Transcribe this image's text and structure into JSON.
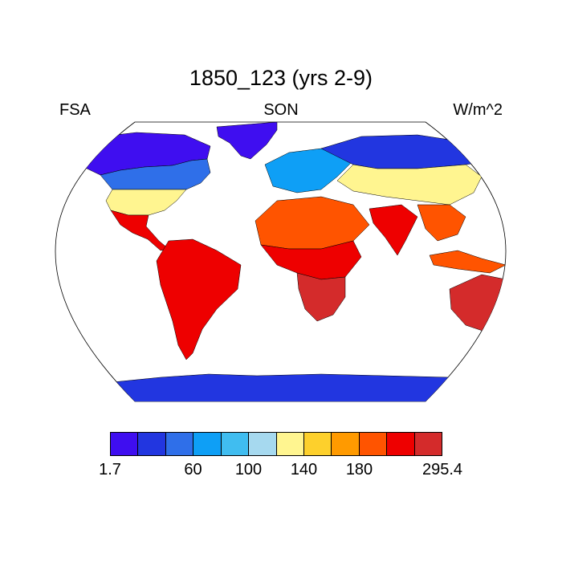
{
  "title": "1850_123 (yrs 2-9)",
  "left_label": "FSA",
  "center_label": "SON",
  "right_label": "W/m^2",
  "colorbar": {
    "colors": [
      "#3f0ef0",
      "#2236e0",
      "#2f6fe9",
      "#0e9ff6",
      "#40bdf0",
      "#a6d9ef",
      "#fff590",
      "#fdd02c",
      "#ff9a00",
      "#ff5400",
      "#ee0000",
      "#d42b2b"
    ],
    "tick_labels": [
      "1.7",
      "60",
      "100",
      "140",
      "180",
      "295.4"
    ]
  },
  "ocean_color": "#ffffff",
  "land_regions": [
    {
      "name": "Greenland",
      "level": 0
    },
    {
      "name": "Antarctica",
      "level": 1
    },
    {
      "name": "North America Arctic",
      "level": 0
    },
    {
      "name": "Canada",
      "level": 2
    },
    {
      "name": "United States",
      "level": 6
    },
    {
      "name": "Mexico and Central America",
      "level": 10
    },
    {
      "name": "South America",
      "level": 10
    },
    {
      "name": "Europe",
      "level": 3
    },
    {
      "name": "Siberia",
      "level": 1
    },
    {
      "name": "Central Asia",
      "level": 6
    },
    {
      "name": "Sahara",
      "level": 9
    },
    {
      "name": "Central Africa",
      "level": 10
    },
    {
      "name": "Southern Africa",
      "level": 11
    },
    {
      "name": "India",
      "level": 10
    },
    {
      "name": "Southeast Asia",
      "level": 9
    },
    {
      "name": "Australia",
      "level": 11
    }
  ]
}
